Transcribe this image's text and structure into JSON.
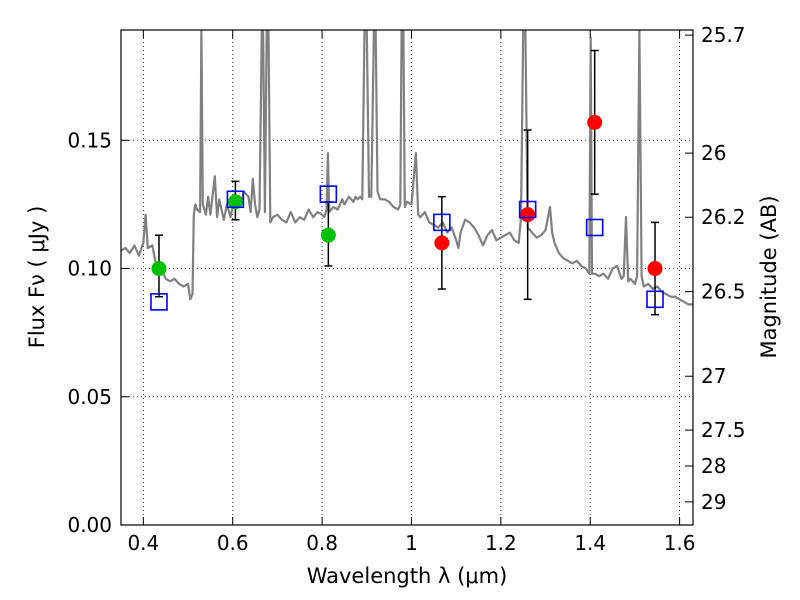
{
  "chart_data": {
    "type": "scatter",
    "xlabel": "Wavelength  λ (μm)",
    "ylabel": "Flux  Fν  ( μJy )",
    "y2label": "Magnitude (AB)",
    "xlim": [
      0.35,
      1.63
    ],
    "ylim": [
      0.0,
      0.193
    ],
    "grid": true,
    "xticks": [
      0.4,
      0.6,
      0.8,
      1.0,
      1.2,
      1.4,
      1.6
    ],
    "xtick_labels": [
      "0.4",
      "0.6",
      "0.8",
      "1",
      "1.2",
      "1.4",
      "1.6"
    ],
    "yticks": [
      0.0,
      0.05,
      0.1,
      0.15
    ],
    "ytick_labels": [
      "0.00",
      "0.05",
      "0.10",
      "0.15"
    ],
    "mag_ticks": [
      {
        "label": "25.7",
        "flux": 0.191
      },
      {
        "label": "26",
        "flux": 0.145
      },
      {
        "label": "26.2",
        "flux": 0.12
      },
      {
        "label": "26.5",
        "flux": 0.091
      },
      {
        "label": "27",
        "flux": 0.058
      },
      {
        "label": "27.5",
        "flux": 0.037
      },
      {
        "label": "28",
        "flux": 0.023
      },
      {
        "label": "29",
        "flux": 0.009
      }
    ],
    "series": [
      {
        "marker": "filled-circle",
        "color": "#00c000",
        "points": [
          {
            "x": 0.435,
            "y": 0.1,
            "err_low": 0.011,
            "err_high": 0.013
          },
          {
            "x": 0.606,
            "y": 0.126,
            "err_low": 0.007,
            "err_high": 0.008
          },
          {
            "x": 0.814,
            "y": 0.113,
            "err_low": 0.012,
            "err_high": 0.013
          }
        ]
      },
      {
        "marker": "filled-circle",
        "color": "#ff0000",
        "points": [
          {
            "x": 1.068,
            "y": 0.11,
            "err_low": 0.018,
            "err_high": 0.018
          },
          {
            "x": 1.26,
            "y": 0.121,
            "err_low": 0.033,
            "err_high": 0.033
          },
          {
            "x": 1.41,
            "y": 0.157,
            "err_low": 0.028,
            "err_high": 0.028
          },
          {
            "x": 1.545,
            "y": 0.1,
            "err_low": 0.018,
            "err_high": 0.018
          }
        ]
      },
      {
        "marker": "open-square",
        "color": "#0000ff",
        "points": [
          {
            "x": 0.435,
            "y": 0.087
          },
          {
            "x": 0.606,
            "y": 0.127
          },
          {
            "x": 0.814,
            "y": 0.129
          },
          {
            "x": 1.068,
            "y": 0.118
          },
          {
            "x": 1.26,
            "y": 0.123
          },
          {
            "x": 1.41,
            "y": 0.116
          },
          {
            "x": 1.545,
            "y": 0.088
          }
        ]
      }
    ],
    "spectrum": {
      "color": "#808080",
      "points": [
        [
          0.35,
          0.107
        ],
        [
          0.36,
          0.108
        ],
        [
          0.37,
          0.106
        ],
        [
          0.38,
          0.109
        ],
        [
          0.39,
          0.105
        ],
        [
          0.4,
          0.11
        ],
        [
          0.405,
          0.121
        ],
        [
          0.41,
          0.108
        ],
        [
          0.42,
          0.109
        ],
        [
          0.43,
          0.1
        ],
        [
          0.44,
          0.1
        ],
        [
          0.45,
          0.096
        ],
        [
          0.46,
          0.095
        ],
        [
          0.47,
          0.096
        ],
        [
          0.48,
          0.094
        ],
        [
          0.49,
          0.093
        ],
        [
          0.5,
          0.094
        ],
        [
          0.505,
          0.088
        ],
        [
          0.51,
          0.09
        ],
        [
          0.513,
          0.121
        ],
        [
          0.516,
          0.125
        ],
        [
          0.52,
          0.123
        ],
        [
          0.527,
          0.122
        ],
        [
          0.53,
          0.193
        ],
        [
          0.533,
          0.125
        ],
        [
          0.54,
          0.121
        ],
        [
          0.545,
          0.128
        ],
        [
          0.55,
          0.121
        ],
        [
          0.56,
          0.136
        ],
        [
          0.565,
          0.12
        ],
        [
          0.57,
          0.127
        ],
        [
          0.58,
          0.119
        ],
        [
          0.587,
          0.125
        ],
        [
          0.595,
          0.12
        ],
        [
          0.605,
          0.129
        ],
        [
          0.615,
          0.124
        ],
        [
          0.625,
          0.13
        ],
        [
          0.635,
          0.128
        ],
        [
          0.64,
          0.122
        ],
        [
          0.645,
          0.135
        ],
        [
          0.65,
          0.125
        ],
        [
          0.655,
          0.12
        ],
        [
          0.66,
          0.123
        ],
        [
          0.665,
          0.193
        ],
        [
          0.668,
          0.193
        ],
        [
          0.672,
          0.122
        ],
        [
          0.676,
          0.193
        ],
        [
          0.68,
          0.193
        ],
        [
          0.684,
          0.118
        ],
        [
          0.69,
          0.12
        ],
        [
          0.7,
          0.121
        ],
        [
          0.71,
          0.119
        ],
        [
          0.72,
          0.118
        ],
        [
          0.73,
          0.122
        ],
        [
          0.74,
          0.118
        ],
        [
          0.75,
          0.12
        ],
        [
          0.76,
          0.119
        ],
        [
          0.77,
          0.123
        ],
        [
          0.78,
          0.12
        ],
        [
          0.79,
          0.122
        ],
        [
          0.8,
          0.121
        ],
        [
          0.805,
          0.12
        ],
        [
          0.81,
          0.123
        ],
        [
          0.813,
          0.145
        ],
        [
          0.816,
          0.122
        ],
        [
          0.825,
          0.124
        ],
        [
          0.835,
          0.123
        ],
        [
          0.845,
          0.127
        ],
        [
          0.85,
          0.125
        ],
        [
          0.86,
          0.128
        ],
        [
          0.87,
          0.126
        ],
        [
          0.875,
          0.128
        ],
        [
          0.88,
          0.127
        ],
        [
          0.885,
          0.128
        ],
        [
          0.89,
          0.127
        ],
        [
          0.895,
          0.193
        ],
        [
          0.9,
          0.193
        ],
        [
          0.905,
          0.128
        ],
        [
          0.91,
          0.128
        ],
        [
          0.916,
          0.193
        ],
        [
          0.92,
          0.193
        ],
        [
          0.924,
          0.13
        ],
        [
          0.93,
          0.127
        ],
        [
          0.94,
          0.127
        ],
        [
          0.95,
          0.126
        ],
        [
          0.96,
          0.124
        ],
        [
          0.97,
          0.123
        ],
        [
          0.975,
          0.125
        ],
        [
          0.978,
          0.193
        ],
        [
          0.982,
          0.193
        ],
        [
          0.985,
          0.124
        ],
        [
          0.99,
          0.126
        ],
        [
          1.0,
          0.125
        ],
        [
          1.01,
          0.145
        ],
        [
          1.015,
          0.121
        ],
        [
          1.02,
          0.12
        ],
        [
          1.03,
          0.122
        ],
        [
          1.04,
          0.118
        ],
        [
          1.05,
          0.117
        ],
        [
          1.06,
          0.116
        ],
        [
          1.07,
          0.118
        ],
        [
          1.08,
          0.114
        ],
        [
          1.09,
          0.116
        ],
        [
          1.1,
          0.111
        ],
        [
          1.105,
          0.108
        ],
        [
          1.11,
          0.114
        ],
        [
          1.12,
          0.119
        ],
        [
          1.13,
          0.118
        ],
        [
          1.14,
          0.116
        ],
        [
          1.15,
          0.113
        ],
        [
          1.16,
          0.109
        ],
        [
          1.17,
          0.113
        ],
        [
          1.18,
          0.115
        ],
        [
          1.19,
          0.111
        ],
        [
          1.2,
          0.112
        ],
        [
          1.21,
          0.113
        ],
        [
          1.22,
          0.114
        ],
        [
          1.23,
          0.111
        ],
        [
          1.24,
          0.11
        ],
        [
          1.245,
          0.12
        ],
        [
          1.25,
          0.193
        ],
        [
          1.255,
          0.193
        ],
        [
          1.26,
          0.116
        ],
        [
          1.27,
          0.114
        ],
        [
          1.28,
          0.112
        ],
        [
          1.29,
          0.113
        ],
        [
          1.3,
          0.115
        ],
        [
          1.31,
          0.124
        ],
        [
          1.315,
          0.114
        ],
        [
          1.32,
          0.11
        ],
        [
          1.33,
          0.106
        ],
        [
          1.34,
          0.104
        ],
        [
          1.35,
          0.103
        ],
        [
          1.36,
          0.102
        ],
        [
          1.37,
          0.103
        ],
        [
          1.38,
          0.101
        ],
        [
          1.39,
          0.1
        ],
        [
          1.398,
          0.098
        ],
        [
          1.401,
          0.19
        ],
        [
          1.404,
          0.098
        ],
        [
          1.41,
          0.098
        ],
        [
          1.42,
          0.097
        ],
        [
          1.43,
          0.098
        ],
        [
          1.44,
          0.096
        ],
        [
          1.45,
          0.1
        ],
        [
          1.46,
          0.101
        ],
        [
          1.47,
          0.096
        ],
        [
          1.475,
          0.097
        ],
        [
          1.48,
          0.12
        ],
        [
          1.485,
          0.095
        ],
        [
          1.49,
          0.096
        ],
        [
          1.5,
          0.094
        ],
        [
          1.505,
          0.097
        ],
        [
          1.51,
          0.193
        ],
        [
          1.515,
          0.097
        ],
        [
          1.52,
          0.093
        ],
        [
          1.53,
          0.094
        ],
        [
          1.54,
          0.092
        ],
        [
          1.55,
          0.093
        ],
        [
          1.56,
          0.091
        ],
        [
          1.57,
          0.09
        ],
        [
          1.58,
          0.089
        ],
        [
          1.59,
          0.089
        ],
        [
          1.6,
          0.088
        ],
        [
          1.61,
          0.087
        ],
        [
          1.62,
          0.086
        ],
        [
          1.63,
          0.086
        ]
      ]
    }
  }
}
